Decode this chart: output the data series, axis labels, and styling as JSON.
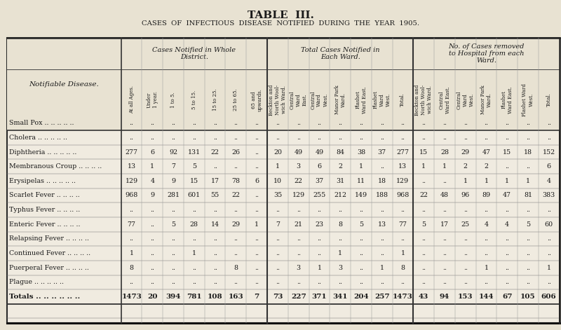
{
  "title": "TABLE  III.",
  "subtitle": "CASES  OF  INFECTIOUS  DISEASE  NOTIFIED  DURING  THE  YEAR  1905.",
  "bg_color": "#e8e2d2",
  "table_bg": "#f0ebe0",
  "header_bg": "#e8e2d2",
  "text_color": "#1a1a1a",
  "col_group1_header": "Cases Notified in Whole\nDistrict.",
  "col_group2_header": "Total Cases Notified in\nEach Ward.",
  "col_group3_header": "No. of Cases removed\nto Hospital from each\nWard.",
  "row_label_header": "Notifiable Disease.",
  "subheaders_group1": [
    "At all Ages.",
    "Under\n1 year.",
    "1 to 5.",
    "5 to 15.",
    "15 to 25.",
    "25 to 65.",
    "65 and\nupwards."
  ],
  "subheaders_group2": [
    "Beckton and\nNorth Wool-\nwich Ward.",
    "Central\nWard\nEast.",
    "Central\nWard\nWest.",
    "Manor Park\nWard.",
    "Plashet\nWard East.",
    "Plashet\nWard\nWest.",
    "Total."
  ],
  "subheaders_group3": [
    "Beckton and\nNorth Wool-\nwich Ward.",
    "Central\nWard East.",
    "Central\nWard\nWest.",
    "Manor Park\nWard.",
    "Plashet\nWard East.",
    "Plashet Ward\nWest.",
    "Total."
  ],
  "diseases": [
    "Small Pox",
    "Cholera",
    "Diphtheria",
    "Membranous Croup",
    "Erysipelas",
    "Scarlet Fever",
    "Typhus Fever",
    "Enteric Fever",
    "Relapsing Fever",
    "Continued Fever",
    "Puerperal Fever",
    "Plague",
    "Totals"
  ],
  "disease_dots": {
    "Small Pox": " .. .. .. .. ..",
    "Cholera": " .. .. .. .. ..",
    "Diphtheria": " .. .. .. .. ..",
    "Membranous Croup": " .. .. .. ..",
    "Erysipelas": " .. .. .. .. ..",
    "Scarlet Fever": " .. .. .. ..",
    "Typhus Fever": " .. .. .. ..",
    "Enteric Fever": " .. .. .. ..",
    "Relapsing Fever": " .. .. .. ..",
    "Continued Fever": " .. .. .. ..",
    "Puerperal Fever": " .. .. .. ..",
    "Plague": " .. .. .. .. ..",
    "Totals": " .. .. .. .. .. .."
  },
  "data": {
    "Small Pox": [
      "..",
      "..",
      "..",
      "..",
      "..",
      "..",
      "..",
      "..",
      "..",
      "..",
      "..",
      "..",
      "..",
      "..",
      "..",
      "..",
      "..",
      "..",
      "..",
      "..",
      ".."
    ],
    "Cholera": [
      "..",
      "..",
      "..",
      "..",
      "..",
      "..",
      "..",
      "..",
      "..",
      "..",
      "..",
      "..",
      "..",
      "..",
      "..",
      "..",
      "..",
      "..",
      "..",
      "..",
      ".."
    ],
    "Diphtheria": [
      "277",
      "6",
      "92",
      "131",
      "22",
      "26",
      "..",
      "20",
      "49",
      "49",
      "84",
      "38",
      "37",
      "277",
      "15",
      "28",
      "29",
      "47",
      "15",
      "18",
      "152"
    ],
    "Membranous Croup": [
      "13",
      "1",
      "7",
      "5",
      "..",
      "..",
      "..",
      "1",
      "3",
      "6",
      "2",
      "1",
      "..",
      "13",
      "1",
      "1",
      "2",
      "2",
      "..",
      "..",
      "6"
    ],
    "Erysipelas": [
      "129",
      "4",
      "9",
      "15",
      "17",
      "78",
      "6",
      "10",
      "22",
      "37",
      "31",
      "11",
      "18",
      "129",
      "..",
      "..",
      "1",
      "1",
      "1",
      "1",
      "4"
    ],
    "Scarlet Fever": [
      "968",
      "9",
      "281",
      "601",
      "55",
      "22",
      "..",
      "35",
      "129",
      "255",
      "212",
      "149",
      "188",
      "968",
      "22",
      "48",
      "96",
      "89",
      "47",
      "81",
      "383"
    ],
    "Typhus Fever": [
      "..",
      "..",
      "..",
      "..",
      "..",
      "..",
      "..",
      "..",
      "..",
      "..",
      "..",
      "..",
      "..",
      "..",
      "..",
      "..",
      "..",
      "..",
      "..",
      "..",
      ".."
    ],
    "Enteric Fever": [
      "77",
      "..",
      "5",
      "28",
      "14",
      "29",
      "1",
      "7",
      "21",
      "23",
      "8",
      "5",
      "13",
      "77",
      "5",
      "17",
      "25",
      "4",
      "4",
      "5",
      "60"
    ],
    "Relapsing Fever": [
      "..",
      "..",
      "..",
      "..",
      "..",
      "..",
      "..",
      "..",
      "..",
      "..",
      "..",
      "..",
      "..",
      "..",
      "..",
      "..",
      "..",
      "..",
      "..",
      "..",
      ".."
    ],
    "Continued Fever": [
      "1",
      "..",
      "..",
      "1",
      "..",
      "..",
      "..",
      "..",
      "..",
      "..",
      "1",
      "..",
      "..",
      "1",
      "..",
      "..",
      "..",
      "..",
      "..",
      "..",
      ".."
    ],
    "Puerperal Fever": [
      "8",
      "..",
      "..",
      "..",
      "..",
      "8",
      "..",
      "..",
      "3",
      "1",
      "3",
      "..",
      "1",
      "8",
      "..",
      "..",
      "..",
      "1",
      "..",
      "..",
      "1"
    ],
    "Plague": [
      "..",
      "..",
      "..",
      "..",
      "..",
      "..",
      "..",
      "..",
      "..",
      "..",
      "..",
      "..",
      "..",
      "..",
      "..",
      "..",
      "..",
      "..",
      "..",
      "..",
      ".."
    ],
    "Totals": [
      "1473",
      "20",
      "394",
      "781",
      "108",
      "163",
      "7",
      "73",
      "227",
      "371",
      "341",
      "204",
      "257",
      "1473",
      "43",
      "94",
      "153",
      "144",
      "67",
      "105",
      "606"
    ]
  }
}
